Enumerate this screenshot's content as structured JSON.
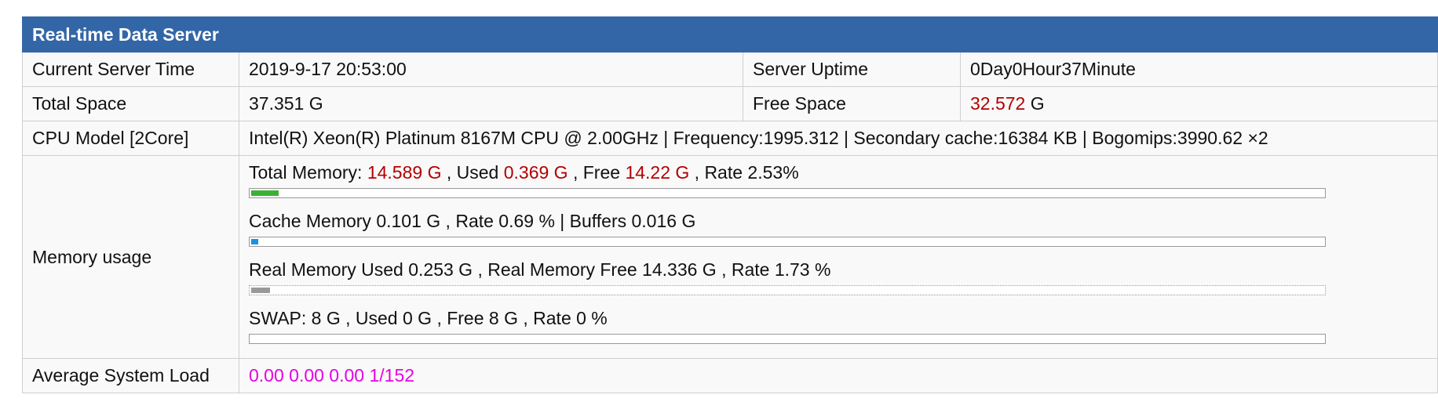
{
  "header": {
    "title": "Real-time Data Server"
  },
  "rows": [
    {
      "label": "Current Server Time",
      "value": "2019-9-17 20:53:00",
      "label2": "Server Uptime",
      "value2": "0Day0Hour37Minute"
    },
    {
      "label": "Total Space",
      "value": "37.351 G",
      "label2": "Free Space",
      "value2": [
        {
          "text": "32.572",
          "color": "#b30000"
        },
        {
          "text": " G"
        }
      ]
    },
    {
      "label": "CPU Model [2Core]",
      "value": "Intel(R) Xeon(R) Platinum 8167M CPU @ 2.00GHz | Frequency:1995.312 | Secondary cache:16384 KB | Bogomips:3990.62 ×2"
    }
  ],
  "memory": {
    "label": "Memory usage",
    "items": [
      {
        "segments": [
          {
            "text": "Total Memory: "
          },
          {
            "text": "14.589 G",
            "color": "#b30000"
          },
          {
            "text": " , Used "
          },
          {
            "text": "0.369 G",
            "color": "#b30000"
          },
          {
            "text": " , Free "
          },
          {
            "text": "14.22 G",
            "color": "#b30000"
          },
          {
            "text": " , Rate 2.53%"
          }
        ],
        "rate": 2.53,
        "color": "#3cb034",
        "border": "solid"
      },
      {
        "segments": [
          {
            "text": "Cache Memory 0.101 G , Rate 0.69 % | Buffers 0.016 G"
          }
        ],
        "rate": 0.69,
        "color": "#1e8fe0",
        "border": "solid"
      },
      {
        "segments": [
          {
            "text": "Real Memory Used 0.253 G , Real Memory Free 14.336 G , Rate 1.73 %"
          }
        ],
        "rate": 1.73,
        "color": "#999999",
        "border": "dotted"
      },
      {
        "segments": [
          {
            "text": "SWAP: 8 G , Used 0 G , Free 8 G , Rate 0 %"
          }
        ],
        "rate": 0,
        "color": "#999999",
        "border": "solid"
      }
    ]
  },
  "load": {
    "label": "Average System Load",
    "value": "0.00 0.00 0.00 1/152",
    "color": "#e600e6"
  }
}
